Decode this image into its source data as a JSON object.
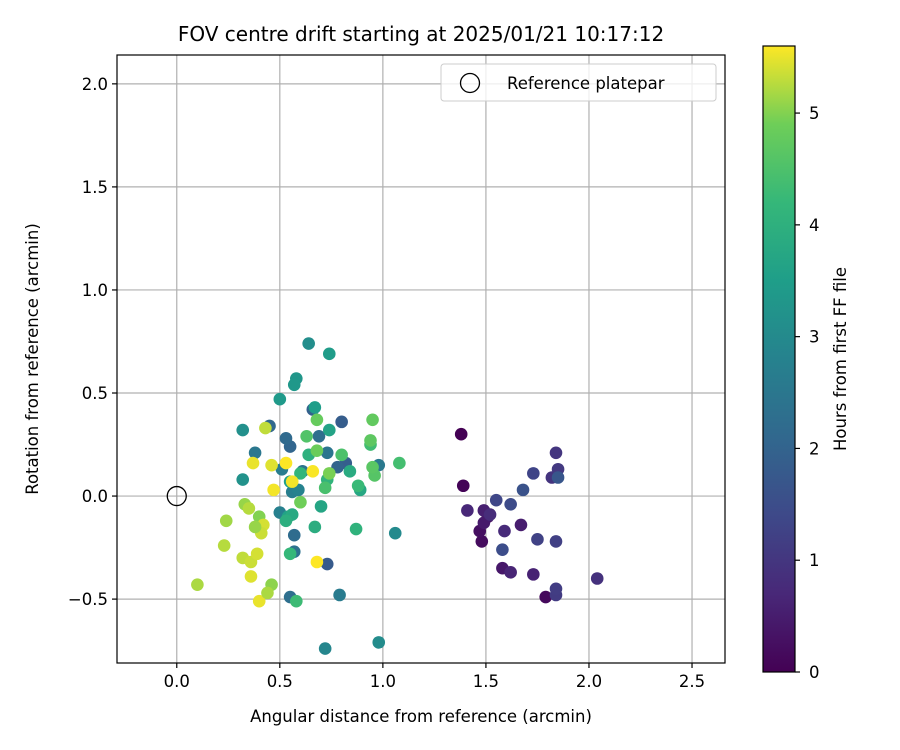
{
  "chart_data": {
    "type": "scatter",
    "title": "FOV centre drift starting at 2025/01/21 10:17:12",
    "xlabel": "Angular distance from reference (arcmin)",
    "ylabel": "Rotation from reference (arcmin)",
    "xlim": [
      -0.29,
      2.66
    ],
    "ylim": [
      -0.81,
      2.14
    ],
    "xticks": [
      0.0,
      0.5,
      1.0,
      1.5,
      2.0,
      2.5
    ],
    "xtick_labels": [
      "0.0",
      "0.5",
      "1.0",
      "1.5",
      "2.0",
      "2.5"
    ],
    "yticks": [
      -0.5,
      0.0,
      0.5,
      1.0,
      1.5,
      2.0
    ],
    "ytick_labels": [
      "−0.5",
      "0.0",
      "0.5",
      "1.0",
      "1.5",
      "2.0"
    ],
    "grid": true,
    "legend": {
      "placement": "top-right",
      "entries": [
        "Reference platepar"
      ]
    },
    "reference_point": {
      "x": 0.0,
      "y": 0.0,
      "label": "Reference platepar"
    },
    "colorbar": {
      "label": "Hours from first FF file",
      "colormap": "viridis",
      "range": [
        0,
        5.6
      ],
      "ticks": [
        0,
        1,
        2,
        3,
        4,
        5
      ],
      "tick_labels": [
        "0",
        "1",
        "2",
        "3",
        "4",
        "5"
      ]
    },
    "points": [
      {
        "x": 1.38,
        "y": 0.3,
        "c": 0.0
      },
      {
        "x": 1.39,
        "y": 0.05,
        "c": 0.05
      },
      {
        "x": 1.79,
        "y": -0.49,
        "c": 0.15
      },
      {
        "x": 1.48,
        "y": -0.22,
        "c": 0.2
      },
      {
        "x": 1.47,
        "y": -0.17,
        "c": 0.25
      },
      {
        "x": 1.51,
        "y": -0.1,
        "c": 0.3
      },
      {
        "x": 1.58,
        "y": -0.35,
        "c": 0.4
      },
      {
        "x": 1.49,
        "y": -0.13,
        "c": 0.45
      },
      {
        "x": 1.67,
        "y": -0.14,
        "c": 0.5
      },
      {
        "x": 1.49,
        "y": -0.07,
        "c": 0.55
      },
      {
        "x": 1.73,
        "y": -0.38,
        "c": 0.6
      },
      {
        "x": 1.62,
        "y": -0.37,
        "c": 0.65
      },
      {
        "x": 1.41,
        "y": -0.07,
        "c": 0.7
      },
      {
        "x": 1.59,
        "y": -0.17,
        "c": 0.75
      },
      {
        "x": 1.52,
        "y": -0.09,
        "c": 0.8
      },
      {
        "x": 2.04,
        "y": -0.4,
        "c": 0.9
      },
      {
        "x": 1.82,
        "y": 0.09,
        "c": 0.95
      },
      {
        "x": 1.84,
        "y": 0.21,
        "c": 1.0
      },
      {
        "x": 1.85,
        "y": 0.13,
        "c": 1.05
      },
      {
        "x": 1.84,
        "y": -0.48,
        "c": 1.1
      },
      {
        "x": 1.84,
        "y": -0.45,
        "c": 1.15
      },
      {
        "x": 1.84,
        "y": -0.22,
        "c": 1.2
      },
      {
        "x": 1.75,
        "y": -0.21,
        "c": 1.25
      },
      {
        "x": 1.73,
        "y": 0.11,
        "c": 1.3
      },
      {
        "x": 1.55,
        "y": -0.02,
        "c": 1.35
      },
      {
        "x": 1.62,
        "y": -0.04,
        "c": 1.45
      },
      {
        "x": 1.58,
        "y": -0.26,
        "c": 1.5
      },
      {
        "x": 1.68,
        "y": 0.03,
        "c": 1.6
      },
      {
        "x": 1.85,
        "y": 0.09,
        "c": 1.7
      },
      {
        "x": 0.73,
        "y": -0.33,
        "c": 1.8
      },
      {
        "x": 0.8,
        "y": 0.36,
        "c": 1.85
      },
      {
        "x": 0.82,
        "y": 0.16,
        "c": 1.9
      },
      {
        "x": 0.66,
        "y": 0.42,
        "c": 1.95
      },
      {
        "x": 0.78,
        "y": 0.14,
        "c": 2.0
      },
      {
        "x": 0.55,
        "y": 0.24,
        "c": 2.05
      },
      {
        "x": 0.45,
        "y": 0.34,
        "c": 2.1
      },
      {
        "x": 0.53,
        "y": 0.28,
        "c": 2.15
      },
      {
        "x": 0.57,
        "y": -0.19,
        "c": 2.2
      },
      {
        "x": 0.69,
        "y": 0.29,
        "c": 2.25
      },
      {
        "x": 0.55,
        "y": -0.49,
        "c": 2.3
      },
      {
        "x": 0.57,
        "y": -0.27,
        "c": 2.35
      },
      {
        "x": 0.61,
        "y": 0.12,
        "c": 2.4
      },
      {
        "x": 0.73,
        "y": 0.21,
        "c": 2.45
      },
      {
        "x": 0.38,
        "y": 0.21,
        "c": 2.5
      },
      {
        "x": 0.98,
        "y": 0.15,
        "c": 2.55
      },
      {
        "x": 0.79,
        "y": -0.48,
        "c": 2.6
      },
      {
        "x": 0.51,
        "y": 0.13,
        "c": 2.65
      },
      {
        "x": 0.56,
        "y": 0.02,
        "c": 2.7
      },
      {
        "x": 0.5,
        "y": -0.08,
        "c": 2.75
      },
      {
        "x": 0.59,
        "y": 0.03,
        "c": 2.8
      },
      {
        "x": 0.72,
        "y": -0.74,
        "c": 2.9
      },
      {
        "x": 1.06,
        "y": -0.18,
        "c": 3.0
      },
      {
        "x": 0.98,
        "y": -0.71,
        "c": 3.05
      },
      {
        "x": 0.64,
        "y": 0.74,
        "c": 3.1
      },
      {
        "x": 0.32,
        "y": 0.32,
        "c": 3.15
      },
      {
        "x": 0.32,
        "y": 0.08,
        "c": 3.2
      },
      {
        "x": 0.58,
        "y": 0.57,
        "c": 3.3
      },
      {
        "x": 0.57,
        "y": 0.54,
        "c": 3.35
      },
      {
        "x": 0.5,
        "y": 0.47,
        "c": 3.4
      },
      {
        "x": 0.74,
        "y": 0.69,
        "c": 3.45
      },
      {
        "x": 0.67,
        "y": 0.43,
        "c": 3.5
      },
      {
        "x": 0.55,
        "y": 0.07,
        "c": 3.55
      },
      {
        "x": 0.54,
        "y": -0.1,
        "c": 3.6
      },
      {
        "x": 0.74,
        "y": 0.32,
        "c": 3.65
      },
      {
        "x": 0.7,
        "y": -0.05,
        "c": 3.7
      },
      {
        "x": 0.89,
        "y": 0.03,
        "c": 3.75
      },
      {
        "x": 0.56,
        "y": -0.09,
        "c": 3.8
      },
      {
        "x": 0.84,
        "y": 0.12,
        "c": 3.85
      },
      {
        "x": 0.67,
        "y": -0.15,
        "c": 3.9
      },
      {
        "x": 0.53,
        "y": -0.12,
        "c": 3.95
      },
      {
        "x": 0.64,
        "y": 0.2,
        "c": 4.0
      },
      {
        "x": 0.87,
        "y": -0.16,
        "c": 4.05
      },
      {
        "x": 0.73,
        "y": 0.08,
        "c": 4.1
      },
      {
        "x": 0.6,
        "y": 0.11,
        "c": 4.15
      },
      {
        "x": 0.55,
        "y": -0.28,
        "c": 4.2
      },
      {
        "x": 0.88,
        "y": 0.05,
        "c": 4.25
      },
      {
        "x": 0.58,
        "y": -0.51,
        "c": 4.3
      },
      {
        "x": 0.94,
        "y": 0.25,
        "c": 4.35
      },
      {
        "x": 1.08,
        "y": 0.16,
        "c": 4.4
      },
      {
        "x": 0.72,
        "y": 0.04,
        "c": 4.45
      },
      {
        "x": 0.8,
        "y": 0.2,
        "c": 4.5
      },
      {
        "x": 0.63,
        "y": 0.29,
        "c": 4.55
      },
      {
        "x": 0.96,
        "y": 0.1,
        "c": 4.6
      },
      {
        "x": 0.95,
        "y": 0.14,
        "c": 4.65
      },
      {
        "x": 0.94,
        "y": 0.27,
        "c": 4.7
      },
      {
        "x": 0.95,
        "y": 0.37,
        "c": 4.75
      },
      {
        "x": 0.68,
        "y": 0.37,
        "c": 4.8
      },
      {
        "x": 0.68,
        "y": 0.22,
        "c": 4.85
      },
      {
        "x": 0.6,
        "y": -0.03,
        "c": 4.9
      },
      {
        "x": 0.74,
        "y": 0.11,
        "c": 4.95
      },
      {
        "x": 0.4,
        "y": -0.1,
        "c": 5.0
      },
      {
        "x": 0.46,
        "y": -0.43,
        "c": 5.05
      },
      {
        "x": 0.33,
        "y": -0.04,
        "c": 5.1
      },
      {
        "x": 0.24,
        "y": -0.12,
        "c": 5.15
      },
      {
        "x": 0.1,
        "y": -0.43,
        "c": 5.2
      },
      {
        "x": 0.23,
        "y": -0.24,
        "c": 5.25
      },
      {
        "x": 0.32,
        "y": -0.3,
        "c": 5.3
      },
      {
        "x": 0.36,
        "y": -0.32,
        "c": 5.35
      },
      {
        "x": 0.42,
        "y": -0.14,
        "c": 5.4
      },
      {
        "x": 0.36,
        "y": -0.39,
        "c": 5.45
      },
      {
        "x": 0.4,
        "y": -0.51,
        "c": 5.5
      },
      {
        "x": 0.47,
        "y": 0.03,
        "c": 5.55
      },
      {
        "x": 0.53,
        "y": 0.16,
        "c": 5.6
      },
      {
        "x": 0.37,
        "y": 0.16,
        "c": 5.5
      },
      {
        "x": 0.46,
        "y": 0.15,
        "c": 5.45
      },
      {
        "x": 0.56,
        "y": 0.07,
        "c": 5.55
      },
      {
        "x": 0.68,
        "y": -0.32,
        "c": 5.6
      },
      {
        "x": 0.66,
        "y": 0.12,
        "c": 5.58
      },
      {
        "x": 0.39,
        "y": -0.28,
        "c": 5.4
      },
      {
        "x": 0.41,
        "y": -0.18,
        "c": 5.35
      },
      {
        "x": 0.35,
        "y": -0.06,
        "c": 5.25
      },
      {
        "x": 0.44,
        "y": -0.47,
        "c": 5.2
      },
      {
        "x": 0.38,
        "y": -0.15,
        "c": 5.1
      },
      {
        "x": 0.43,
        "y": 0.33,
        "c": 5.3
      }
    ]
  }
}
